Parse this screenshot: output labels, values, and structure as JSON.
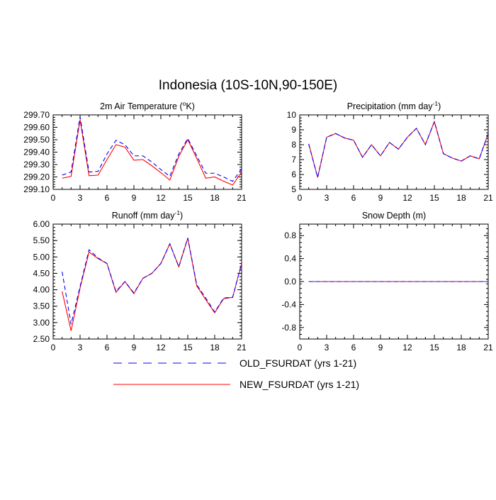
{
  "figure_title": "Indonesia (10S-10N,90-150E)",
  "legend": [
    {
      "label": "OLD_FSURDAT (yrs 1-21)",
      "color": "#0000ff",
      "dash": "dashed"
    },
    {
      "label": "NEW_FSURDAT (yrs 1-21)",
      "color": "#ff0000",
      "dash": "solid"
    }
  ],
  "chart_data": [
    {
      "type": "line",
      "title": "2m Air Temperature (°K)",
      "title_parts": {
        "pre": "2m Air Temperature (",
        "sup": "o",
        "post": "K)"
      },
      "xlim": [
        0,
        21
      ],
      "xticks": [
        0,
        3,
        6,
        9,
        12,
        15,
        18,
        21
      ],
      "xtick_labels": [
        "0",
        "3",
        "6",
        "9",
        "12",
        "15",
        "18",
        "21"
      ],
      "ylim": [
        299.1,
        299.7
      ],
      "yticks": [
        299.1,
        299.2,
        299.3,
        299.4,
        299.5,
        299.6,
        299.7
      ],
      "ytick_labels": [
        "299.10",
        "299.20",
        "299.30",
        "299.40",
        "299.50",
        "299.60",
        "299.70"
      ],
      "x": [
        1,
        2,
        3,
        4,
        5,
        6,
        7,
        8,
        9,
        10,
        11,
        12,
        13,
        14,
        15,
        16,
        17,
        18,
        19,
        20,
        21
      ],
      "series": [
        {
          "name": "OLD_FSURDAT (yrs 1-21)",
          "values": [
            299.215,
            299.24,
            299.685,
            299.24,
            299.245,
            299.385,
            299.495,
            299.46,
            299.37,
            299.37,
            299.32,
            299.26,
            299.205,
            299.385,
            299.51,
            299.37,
            299.23,
            299.23,
            299.2,
            299.165,
            299.265
          ]
        },
        {
          "name": "NEW_FSURDAT (yrs 1-21)",
          "values": [
            299.19,
            299.205,
            299.66,
            299.21,
            299.215,
            299.34,
            299.46,
            299.44,
            299.335,
            299.34,
            299.29,
            299.235,
            299.175,
            299.365,
            299.5,
            299.35,
            299.19,
            299.2,
            299.165,
            299.135,
            299.24
          ]
        }
      ]
    },
    {
      "type": "line",
      "title": "Precipitation (mm day-1)",
      "title_parts": {
        "pre": "Precipitation (mm day",
        "sup": "-1",
        "post": ")"
      },
      "xlim": [
        0,
        21
      ],
      "xticks": [
        0,
        3,
        6,
        9,
        12,
        15,
        18,
        21
      ],
      "xtick_labels": [
        "0",
        "3",
        "6",
        "9",
        "12",
        "15",
        "18",
        "21"
      ],
      "ylim": [
        5,
        10
      ],
      "yticks": [
        5,
        6,
        7,
        8,
        9,
        10
      ],
      "ytick_labels": [
        "5",
        "6",
        "7",
        "8",
        "9",
        "10"
      ],
      "x": [
        1,
        2,
        3,
        4,
        5,
        6,
        7,
        8,
        9,
        10,
        11,
        12,
        13,
        14,
        15,
        16,
        17,
        18,
        19,
        20,
        21
      ],
      "series": [
        {
          "name": "OLD_FSURDAT (yrs 1-21)",
          "values": [
            8.05,
            5.8,
            8.5,
            8.75,
            8.45,
            8.3,
            7.15,
            8.0,
            7.25,
            8.15,
            7.7,
            8.5,
            9.1,
            8.0,
            9.55,
            7.4,
            7.1,
            6.9,
            7.25,
            7.05,
            8.75
          ]
        },
        {
          "name": "NEW_FSURDAT (yrs 1-21)",
          "values": [
            8.05,
            5.8,
            8.5,
            8.75,
            8.45,
            8.3,
            7.15,
            8.0,
            7.25,
            8.15,
            7.7,
            8.5,
            9.1,
            8.0,
            9.55,
            7.4,
            7.1,
            6.9,
            7.25,
            7.05,
            8.75
          ]
        }
      ]
    },
    {
      "type": "line",
      "title": "Runoff (mm day-1)",
      "title_parts": {
        "pre": "Runoff (mm day",
        "sup": "-1",
        "post": ")"
      },
      "xlim": [
        0,
        21
      ],
      "xticks": [
        0,
        3,
        6,
        9,
        12,
        15,
        18,
        21
      ],
      "xtick_labels": [
        "0",
        "3",
        "6",
        "9",
        "12",
        "15",
        "18",
        "21"
      ],
      "ylim": [
        2.5,
        6.0
      ],
      "yticks": [
        2.5,
        3.0,
        3.5,
        4.0,
        4.5,
        5.0,
        5.5,
        6.0
      ],
      "ytick_labels": [
        "2.50",
        "3.00",
        "3.50",
        "4.00",
        "4.50",
        "5.00",
        "5.50",
        "6.00"
      ],
      "x": [
        1,
        2,
        3,
        4,
        5,
        6,
        7,
        8,
        9,
        10,
        11,
        12,
        13,
        14,
        15,
        16,
        17,
        18,
        19,
        20,
        21
      ],
      "series": [
        {
          "name": "OLD_FSURDAT (yrs 1-21)",
          "values": [
            4.55,
            2.95,
            4.1,
            5.22,
            4.97,
            4.8,
            3.95,
            4.25,
            3.9,
            4.35,
            4.5,
            4.8,
            5.4,
            4.7,
            5.58,
            4.15,
            3.75,
            3.32,
            3.75,
            3.77,
            4.8
          ]
        },
        {
          "name": "NEW_FSURDAT (yrs 1-21)",
          "values": [
            3.95,
            2.75,
            4.05,
            5.15,
            4.95,
            4.8,
            3.92,
            4.25,
            3.88,
            4.35,
            4.5,
            4.8,
            5.4,
            4.7,
            5.57,
            4.12,
            3.7,
            3.3,
            3.73,
            3.77,
            4.8
          ]
        }
      ]
    },
    {
      "type": "line",
      "title": "Snow Depth (m)",
      "title_parts": {
        "pre": "Snow Depth (m)",
        "sup": "",
        "post": ""
      },
      "xlim": [
        0,
        21
      ],
      "xticks": [
        0,
        3,
        6,
        9,
        12,
        15,
        18,
        21
      ],
      "xtick_labels": [
        "0",
        "3",
        "6",
        "9",
        "12",
        "15",
        "18",
        "21"
      ],
      "ylim": [
        -1.0,
        1.0
      ],
      "yticks": [
        -0.8,
        -0.4,
        0.0,
        0.4,
        0.8
      ],
      "ytick_labels": [
        "-0.8",
        "-0.4",
        "0.0",
        "0.4",
        "0.8"
      ],
      "x": [
        1,
        2,
        3,
        4,
        5,
        6,
        7,
        8,
        9,
        10,
        11,
        12,
        13,
        14,
        15,
        16,
        17,
        18,
        19,
        20,
        21
      ],
      "series": [
        {
          "name": "OLD_FSURDAT (yrs 1-21)",
          "values": [
            0,
            0,
            0,
            0,
            0,
            0,
            0,
            0,
            0,
            0,
            0,
            0,
            0,
            0,
            0,
            0,
            0,
            0,
            0,
            0,
            0
          ]
        },
        {
          "name": "NEW_FSURDAT (yrs 1-21)",
          "values": [
            0,
            0,
            0,
            0,
            0,
            0,
            0,
            0,
            0,
            0,
            0,
            0,
            0,
            0,
            0,
            0,
            0,
            0,
            0,
            0,
            0
          ]
        }
      ]
    }
  ]
}
